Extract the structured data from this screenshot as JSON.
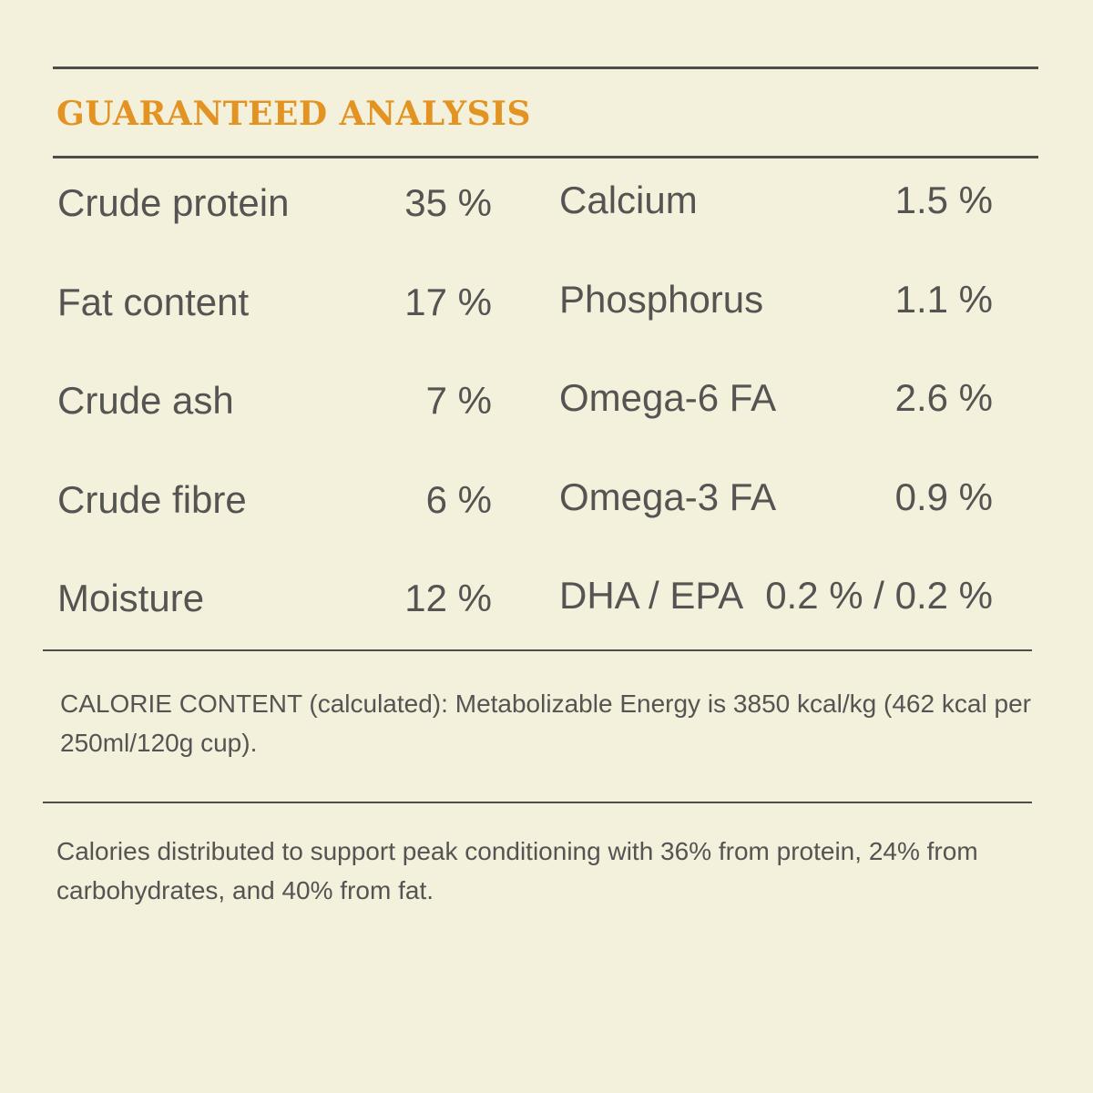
{
  "header": {
    "title": "GUARANTEED ANALYSIS"
  },
  "analysis": {
    "left": [
      {
        "label": "Crude protein",
        "value": "35 %"
      },
      {
        "label": "Fat content",
        "value": "17 %"
      },
      {
        "label": "Crude ash",
        "value": "7 %"
      },
      {
        "label": "Crude fibre",
        "value": "6 %"
      },
      {
        "label": "Moisture",
        "value": "12 %"
      }
    ],
    "right": [
      {
        "label": "Calcium",
        "value": "1.5 %"
      },
      {
        "label": "Phosphorus",
        "value": "1.1 %"
      },
      {
        "label": "Omega-6 FA",
        "value": "2.6 %"
      },
      {
        "label": "Omega-3 FA",
        "value": "0.9 %"
      },
      {
        "label": "DHA / EPA",
        "value": "0.2 % / 0.2 %"
      }
    ]
  },
  "calorie_content": "CALORIE CONTENT (calculated): Metabolizable Energy is 3850 kcal/kg (462 kcal per 250ml/120g cup).",
  "distribution": "Calories distributed to support peak conditioning with 36% from protein, 24% from carbohydrates, and 40% from fat."
}
